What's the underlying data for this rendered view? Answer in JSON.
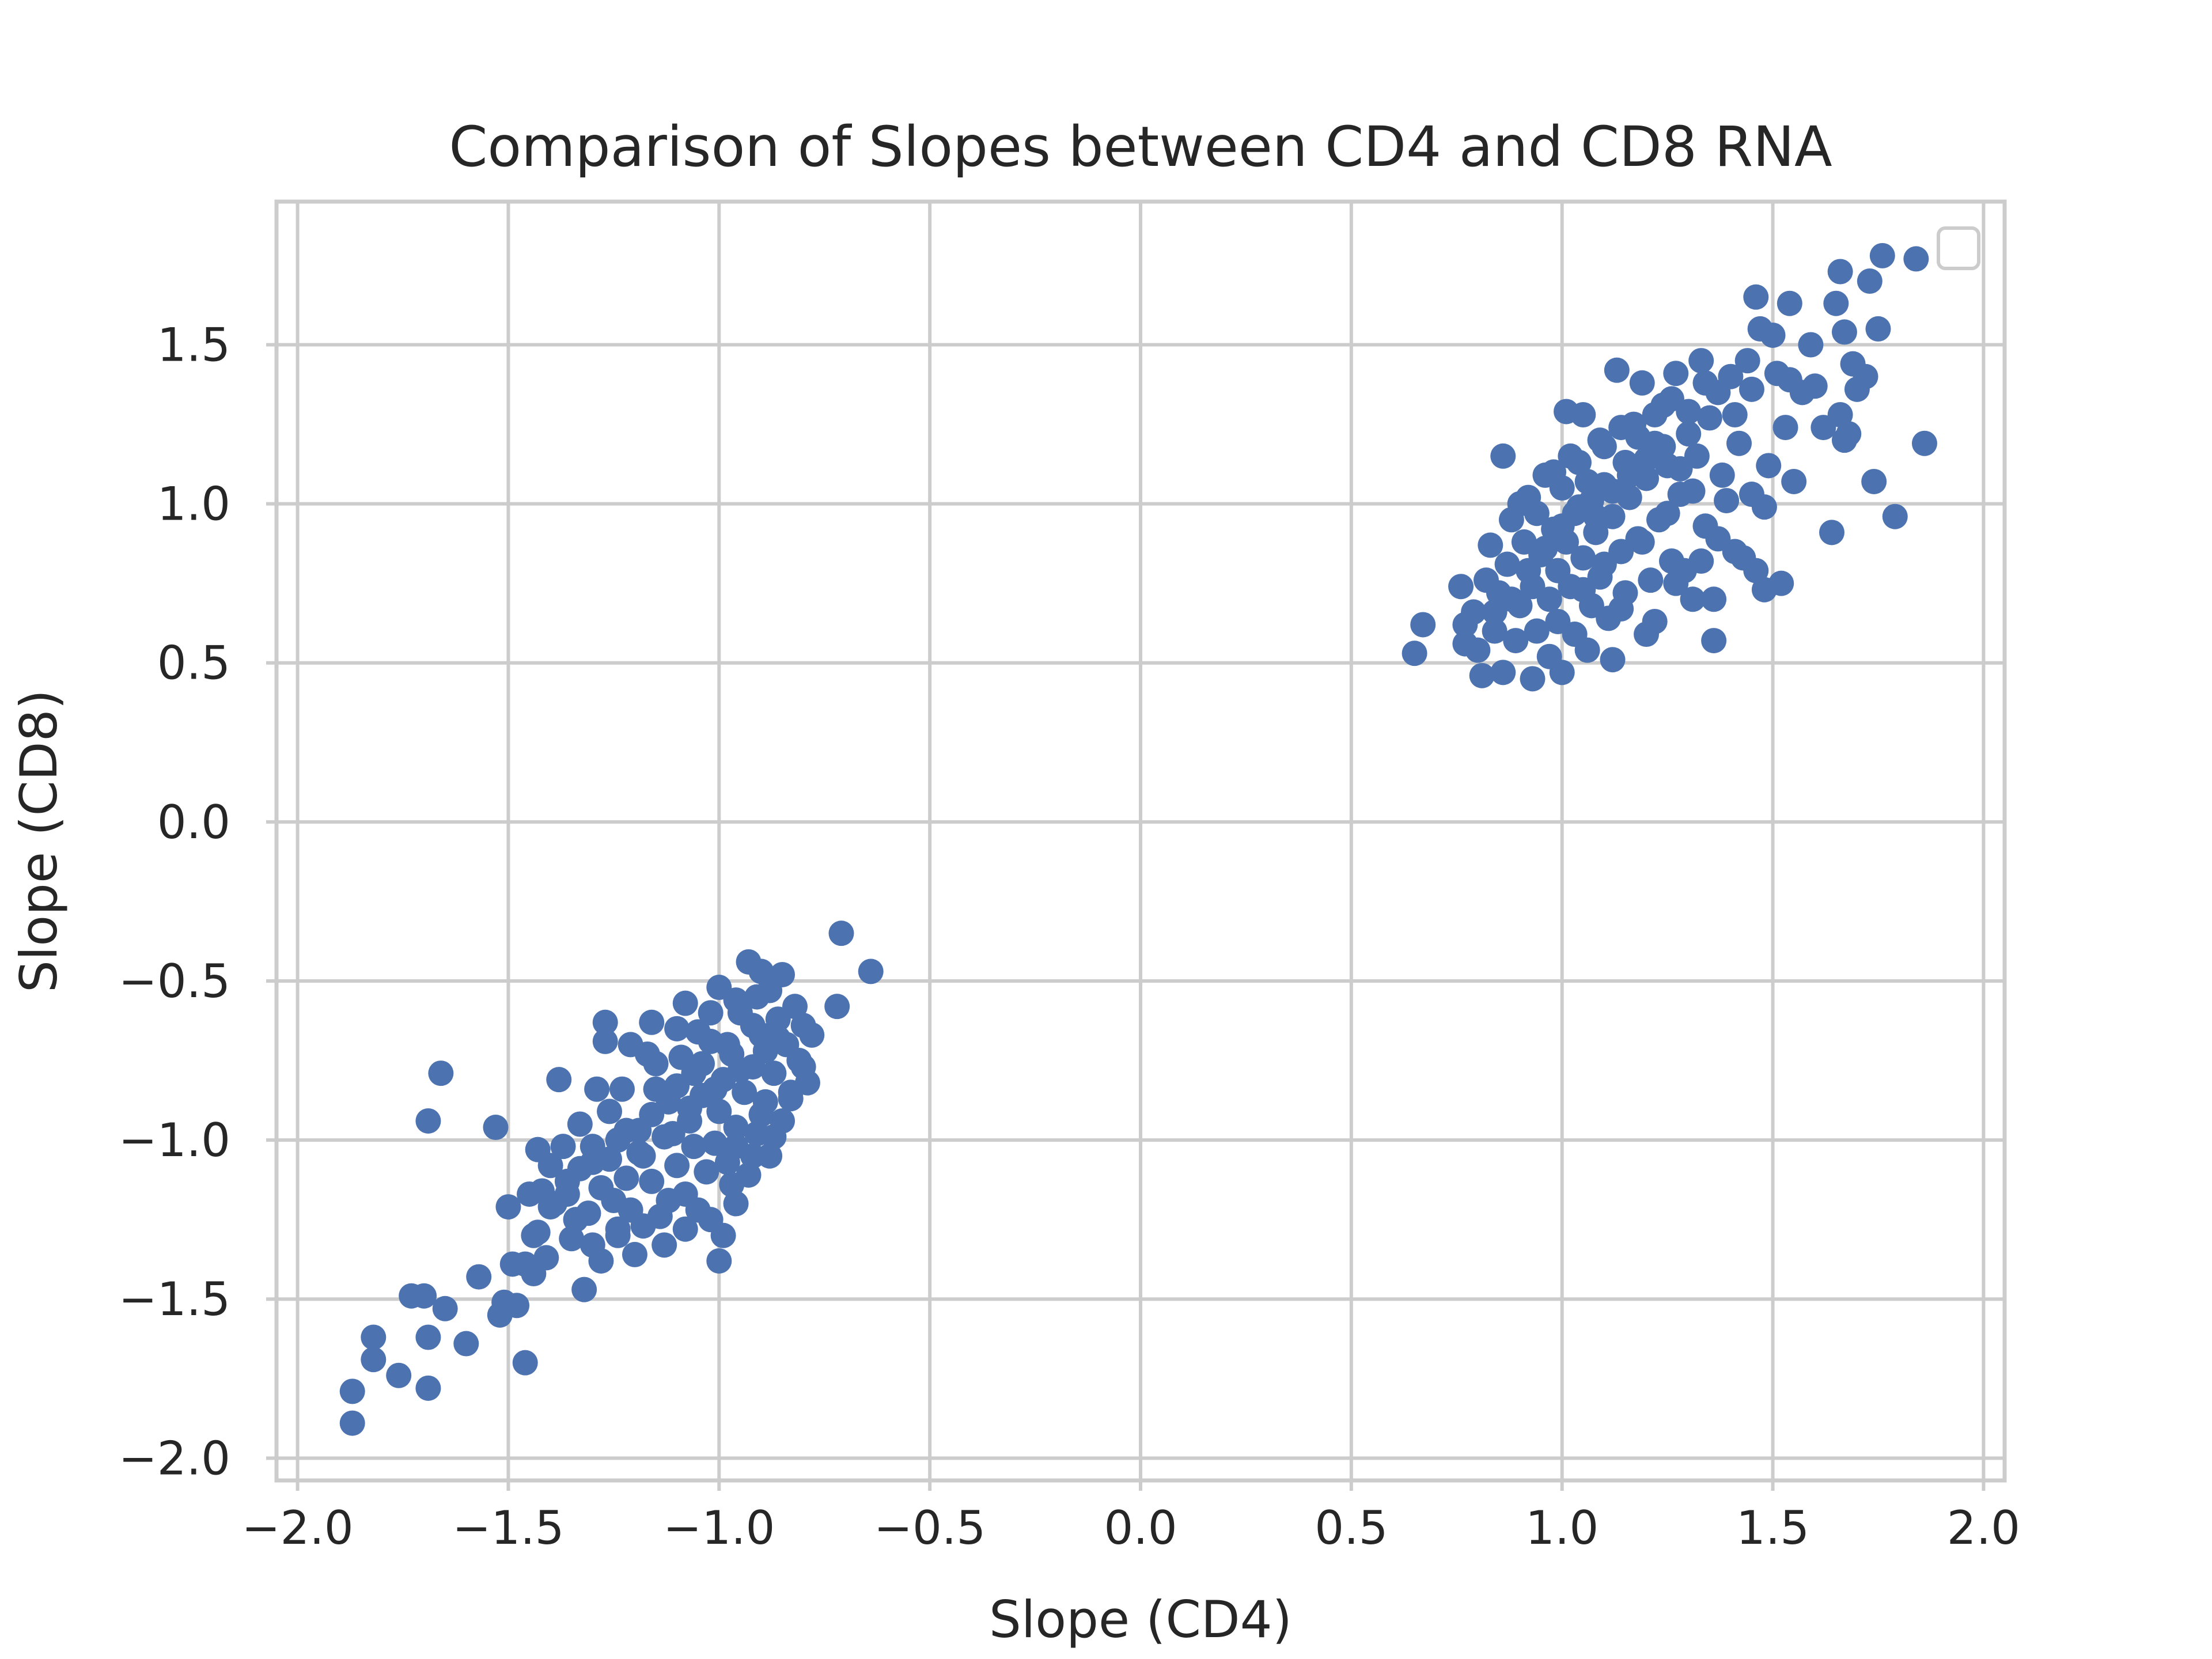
{
  "chart_data": {
    "type": "scatter",
    "title": "Comparison of Slopes between CD4 and CD8 RNA",
    "xlabel": "Slope (CD4)",
    "ylabel": "Slope (CD8)",
    "xlim": [
      -2.05,
      2.05
    ],
    "ylim": [
      -2.07,
      1.95
    ],
    "xticks": [
      -2.0,
      -1.5,
      -1.0,
      -0.5,
      0.0,
      0.5,
      1.0,
      1.5,
      2.0
    ],
    "xtick_labels": [
      "−2.0",
      "−1.5",
      "−1.0",
      "−0.5",
      "0.0",
      "0.5",
      "1.0",
      "1.5",
      "2.0"
    ],
    "yticks": [
      -2.0,
      -1.5,
      -1.0,
      -0.5,
      0.0,
      0.5,
      1.0,
      1.5
    ],
    "ytick_labels": [
      "−2.0",
      "−1.5",
      "−1.0",
      "−0.5",
      "0.0",
      "0.5",
      "1.0",
      "1.5"
    ],
    "grid": true,
    "legend": {
      "placement": "top-right",
      "entries": []
    },
    "marker_color": "#4c72b0",
    "series": [
      {
        "points": [
          [
            -1.87,
            -1.79
          ],
          [
            -1.87,
            -1.89
          ],
          [
            -1.82,
            -1.62
          ],
          [
            -1.82,
            -1.69
          ],
          [
            -1.76,
            -1.74
          ],
          [
            -1.73,
            -1.49
          ],
          [
            -1.7,
            -1.49
          ],
          [
            -1.69,
            -1.62
          ],
          [
            -1.69,
            -1.78
          ],
          [
            -1.69,
            -0.94
          ],
          [
            -1.66,
            -0.79
          ],
          [
            -1.65,
            -1.53
          ],
          [
            -1.6,
            -1.64
          ],
          [
            -1.57,
            -1.43
          ],
          [
            -1.53,
            -0.96
          ],
          [
            -1.52,
            -1.55
          ],
          [
            -1.51,
            -1.51
          ],
          [
            -1.5,
            -1.21
          ],
          [
            -1.48,
            -1.52
          ],
          [
            -1.46,
            -1.39
          ],
          [
            -1.46,
            -1.7
          ],
          [
            -1.45,
            -1.17
          ],
          [
            -1.44,
            -1.42
          ],
          [
            -1.43,
            -1.03
          ],
          [
            -1.43,
            -1.29
          ],
          [
            -1.42,
            -1.16
          ],
          [
            -1.41,
            -1.37
          ],
          [
            -1.4,
            -1.08
          ],
          [
            -1.39,
            -1.2
          ],
          [
            -1.38,
            -0.81
          ],
          [
            -1.37,
            -1.02
          ],
          [
            -1.36,
            -1.13
          ],
          [
            -1.35,
            -1.31
          ],
          [
            -1.34,
            -1.25
          ],
          [
            -1.33,
            -0.95
          ],
          [
            -1.32,
            -1.47
          ],
          [
            -1.31,
            -1.23
          ],
          [
            -1.3,
            -1.07
          ],
          [
            -1.3,
            -1.33
          ],
          [
            -1.29,
            -0.84
          ],
          [
            -1.28,
            -1.15
          ],
          [
            -1.28,
            -1.38
          ],
          [
            -1.27,
            -0.69
          ],
          [
            -1.27,
            -0.63
          ],
          [
            -1.26,
            -0.91
          ],
          [
            -1.25,
            -1.19
          ],
          [
            -1.24,
            -1.0
          ],
          [
            -1.24,
            -1.28
          ],
          [
            -1.23,
            -0.84
          ],
          [
            -1.22,
            -1.12
          ],
          [
            -1.21,
            -1.22
          ],
          [
            -1.2,
            -1.36
          ],
          [
            -1.19,
            -0.97
          ],
          [
            -1.18,
            -1.05
          ],
          [
            -1.17,
            -0.73
          ],
          [
            -1.16,
            -1.13
          ],
          [
            -1.15,
            -0.84
          ],
          [
            -1.14,
            -1.24
          ],
          [
            -1.13,
            -1.33
          ],
          [
            -1.12,
            -0.88
          ],
          [
            -1.11,
            -0.98
          ],
          [
            -1.1,
            -1.08
          ],
          [
            -1.1,
            -0.65
          ],
          [
            -1.09,
            -0.74
          ],
          [
            -1.08,
            -1.17
          ],
          [
            -1.07,
            -0.94
          ],
          [
            -1.06,
            -1.02
          ],
          [
            -1.06,
            -0.79
          ],
          [
            -1.05,
            -1.22
          ],
          [
            -1.04,
            -0.86
          ],
          [
            -1.03,
            -1.1
          ],
          [
            -1.02,
            -0.69
          ],
          [
            -1.01,
            -1.01
          ],
          [
            -1.0,
            -0.91
          ],
          [
            -1.0,
            -1.38
          ],
          [
            -0.99,
            -0.81
          ],
          [
            -0.99,
            -1.3
          ],
          [
            -0.98,
            -1.07
          ],
          [
            -0.97,
            -0.73
          ],
          [
            -0.96,
            -0.96
          ],
          [
            -0.96,
            -1.2
          ],
          [
            -0.95,
            -0.6
          ],
          [
            -0.94,
            -0.85
          ],
          [
            -0.93,
            -1.11
          ],
          [
            -0.93,
            -0.44
          ],
          [
            -0.92,
            -0.77
          ],
          [
            -0.91,
            -0.98
          ],
          [
            -0.9,
            -0.67
          ],
          [
            -0.9,
            -0.47
          ],
          [
            -0.89,
            -0.88
          ],
          [
            -0.88,
            -1.05
          ],
          [
            -0.88,
            -0.53
          ],
          [
            -0.87,
            -0.79
          ],
          [
            -0.86,
            -0.62
          ],
          [
            -0.85,
            -0.94
          ],
          [
            -0.85,
            -0.48
          ],
          [
            -0.84,
            -0.7
          ],
          [
            -0.83,
            -0.85
          ],
          [
            -0.82,
            -0.58
          ],
          [
            -0.81,
            -0.75
          ],
          [
            -0.8,
            -0.64
          ],
          [
            -0.79,
            -0.82
          ],
          [
            -0.71,
            -0.35
          ],
          [
            -0.72,
            -0.58
          ],
          [
            -0.64,
            -0.47
          ],
          [
            -1.49,
            -1.39
          ],
          [
            -1.44,
            -1.3
          ],
          [
            -1.4,
            -1.21
          ],
          [
            -1.36,
            -1.17
          ],
          [
            -1.33,
            -1.09
          ],
          [
            -1.3,
            -1.02
          ],
          [
            -1.26,
            -1.06
          ],
          [
            -1.22,
            -0.97
          ],
          [
            -1.19,
            -1.04
          ],
          [
            -1.16,
            -0.92
          ],
          [
            -1.13,
            -0.99
          ],
          [
            -1.1,
            -0.83
          ],
          [
            -1.07,
            -0.9
          ],
          [
            -1.04,
            -0.76
          ],
          [
            -1.01,
            -0.84
          ],
          [
            -0.98,
            -0.7
          ],
          [
            -0.95,
            -0.78
          ],
          [
            -0.92,
            -0.64
          ],
          [
            -0.89,
            -0.72
          ],
          [
            -0.86,
            -0.68
          ],
          [
            -1.12,
            -1.19
          ],
          [
            -1.08,
            -1.28
          ],
          [
            -0.97,
            -1.14
          ],
          [
            -0.92,
            -1.05
          ],
          [
            -1.21,
            -0.7
          ],
          [
            -1.16,
            -0.63
          ],
          [
            -1.08,
            -0.57
          ],
          [
            -1.0,
            -0.52
          ],
          [
            -0.96,
            -0.56
          ],
          [
            -0.91,
            -0.55
          ],
          [
            -1.18,
            -1.27
          ],
          [
            -1.24,
            -1.3
          ],
          [
            -1.02,
            -1.25
          ],
          [
            -0.96,
            -1.02
          ],
          [
            -0.9,
            -0.92
          ],
          [
            -0.87,
            -0.99
          ],
          [
            -0.83,
            -0.87
          ],
          [
            -0.8,
            -0.77
          ],
          [
            -0.78,
            -0.67
          ],
          [
            -1.15,
            -0.76
          ],
          [
            -1.05,
            -0.66
          ],
          [
            -1.02,
            -0.6
          ]
        ]
      },
      {
        "points": [
          [
            0.65,
            0.53
          ],
          [
            0.67,
            0.62
          ],
          [
            0.76,
            0.74
          ],
          [
            0.77,
            0.62
          ],
          [
            0.77,
            0.56
          ],
          [
            0.79,
            0.66
          ],
          [
            0.8,
            0.54
          ],
          [
            0.81,
            0.46
          ],
          [
            0.82,
            0.76
          ],
          [
            0.83,
            0.87
          ],
          [
            0.84,
            0.6
          ],
          [
            0.85,
            0.72
          ],
          [
            0.86,
            0.47
          ],
          [
            0.86,
            1.15
          ],
          [
            0.87,
            0.81
          ],
          [
            0.88,
            0.95
          ],
          [
            0.89,
            0.57
          ],
          [
            0.9,
            0.68
          ],
          [
            0.91,
            0.88
          ],
          [
            0.92,
            1.02
          ],
          [
            0.93,
            0.45
          ],
          [
            0.93,
            0.74
          ],
          [
            0.94,
            0.6
          ],
          [
            0.95,
            0.84
          ],
          [
            0.96,
            1.09
          ],
          [
            0.97,
            0.52
          ],
          [
            0.97,
            0.7
          ],
          [
            0.98,
            0.92
          ],
          [
            0.99,
            0.63
          ],
          [
            0.99,
            0.79
          ],
          [
            1.0,
            1.05
          ],
          [
            1.0,
            0.47
          ],
          [
            1.01,
            0.88
          ],
          [
            1.01,
            1.29
          ],
          [
            1.02,
            0.74
          ],
          [
            1.03,
            0.97
          ],
          [
            1.03,
            0.59
          ],
          [
            1.04,
            1.13
          ],
          [
            1.05,
            0.83
          ],
          [
            1.05,
            1.28
          ],
          [
            1.06,
            0.54
          ],
          [
            1.07,
            0.68
          ],
          [
            1.07,
            1.01
          ],
          [
            1.08,
            0.91
          ],
          [
            1.09,
            1.2
          ],
          [
            1.09,
            0.77
          ],
          [
            1.1,
            1.06
          ],
          [
            1.11,
            0.64
          ],
          [
            1.12,
            0.96
          ],
          [
            1.12,
            0.51
          ],
          [
            1.13,
            1.42
          ],
          [
            1.14,
            0.85
          ],
          [
            1.15,
            1.13
          ],
          [
            1.15,
            0.72
          ],
          [
            1.16,
            1.02
          ],
          [
            1.17,
            1.25
          ],
          [
            1.18,
            0.89
          ],
          [
            1.19,
            1.38
          ],
          [
            1.2,
            0.59
          ],
          [
            1.2,
            1.08
          ],
          [
            1.21,
            0.76
          ],
          [
            1.22,
            1.19
          ],
          [
            1.22,
            0.63
          ],
          [
            1.23,
            0.95
          ],
          [
            1.24,
            1.31
          ],
          [
            1.25,
            1.12
          ],
          [
            1.26,
            0.82
          ],
          [
            1.27,
            1.41
          ],
          [
            1.28,
            1.03
          ],
          [
            1.29,
            0.79
          ],
          [
            1.3,
            1.22
          ],
          [
            1.31,
            0.7
          ],
          [
            1.32,
            1.15
          ],
          [
            1.33,
            1.45
          ],
          [
            1.34,
            0.93
          ],
          [
            1.35,
            1.27
          ],
          [
            1.36,
            0.57
          ],
          [
            1.36,
            0.7
          ],
          [
            1.37,
            1.35
          ],
          [
            1.38,
            1.09
          ],
          [
            1.4,
            1.4
          ],
          [
            1.41,
            0.85
          ],
          [
            1.42,
            1.19
          ],
          [
            1.43,
            0.83
          ],
          [
            1.44,
            1.45
          ],
          [
            1.45,
            1.03
          ],
          [
            1.46,
            1.65
          ],
          [
            1.46,
            0.79
          ],
          [
            1.47,
            1.55
          ],
          [
            1.48,
            0.73
          ],
          [
            1.49,
            1.12
          ],
          [
            1.5,
            1.53
          ],
          [
            1.51,
            1.41
          ],
          [
            1.52,
            0.75
          ],
          [
            1.53,
            1.24
          ],
          [
            1.54,
            1.63
          ],
          [
            1.55,
            1.07
          ],
          [
            1.57,
            1.35
          ],
          [
            1.59,
            1.5
          ],
          [
            1.6,
            1.37
          ],
          [
            1.62,
            1.24
          ],
          [
            1.64,
            0.91
          ],
          [
            1.65,
            1.63
          ],
          [
            1.66,
            1.73
          ],
          [
            1.67,
            1.54
          ],
          [
            1.68,
            1.22
          ],
          [
            1.69,
            1.44
          ],
          [
            1.7,
            1.36
          ],
          [
            1.72,
            1.4
          ],
          [
            1.73,
            1.7
          ],
          [
            1.74,
            1.07
          ],
          [
            1.75,
            1.55
          ],
          [
            1.76,
            1.78
          ],
          [
            1.79,
            0.96
          ],
          [
            1.84,
            1.77
          ],
          [
            1.86,
            1.19
          ],
          [
            1.66,
            1.28
          ],
          [
            1.67,
            1.2
          ],
          [
            1.54,
            1.39
          ],
          [
            1.48,
            0.99
          ],
          [
            0.9,
            1.0
          ],
          [
            0.94,
            0.97
          ],
          [
            0.98,
            1.1
          ],
          [
            1.02,
            1.15
          ],
          [
            1.06,
            1.07
          ],
          [
            1.1,
            1.18
          ],
          [
            1.14,
            1.24
          ],
          [
            1.18,
            1.21
          ],
          [
            1.22,
            1.28
          ],
          [
            1.26,
            1.33
          ],
          [
            1.3,
            1.29
          ],
          [
            1.34,
            1.38
          ],
          [
            0.92,
            0.79
          ],
          [
            0.96,
            0.86
          ],
          [
            1.0,
            0.93
          ],
          [
            1.04,
            0.99
          ],
          [
            1.08,
            0.96
          ],
          [
            1.12,
            1.04
          ],
          [
            1.16,
            1.09
          ],
          [
            1.2,
            1.14
          ],
          [
            1.24,
            1.18
          ],
          [
            1.28,
            1.11
          ],
          [
            0.88,
            0.7
          ],
          [
            0.84,
            0.66
          ],
          [
            1.05,
            0.73
          ],
          [
            1.1,
            0.81
          ],
          [
            1.14,
            0.67
          ],
          [
            1.19,
            0.88
          ],
          [
            1.25,
            0.97
          ],
          [
            1.31,
            1.04
          ],
          [
            1.37,
            0.89
          ],
          [
            1.41,
            1.28
          ],
          [
            1.45,
            1.36
          ],
          [
            1.39,
            1.01
          ],
          [
            1.33,
            0.82
          ],
          [
            1.27,
            0.75
          ]
        ]
      }
    ]
  }
}
